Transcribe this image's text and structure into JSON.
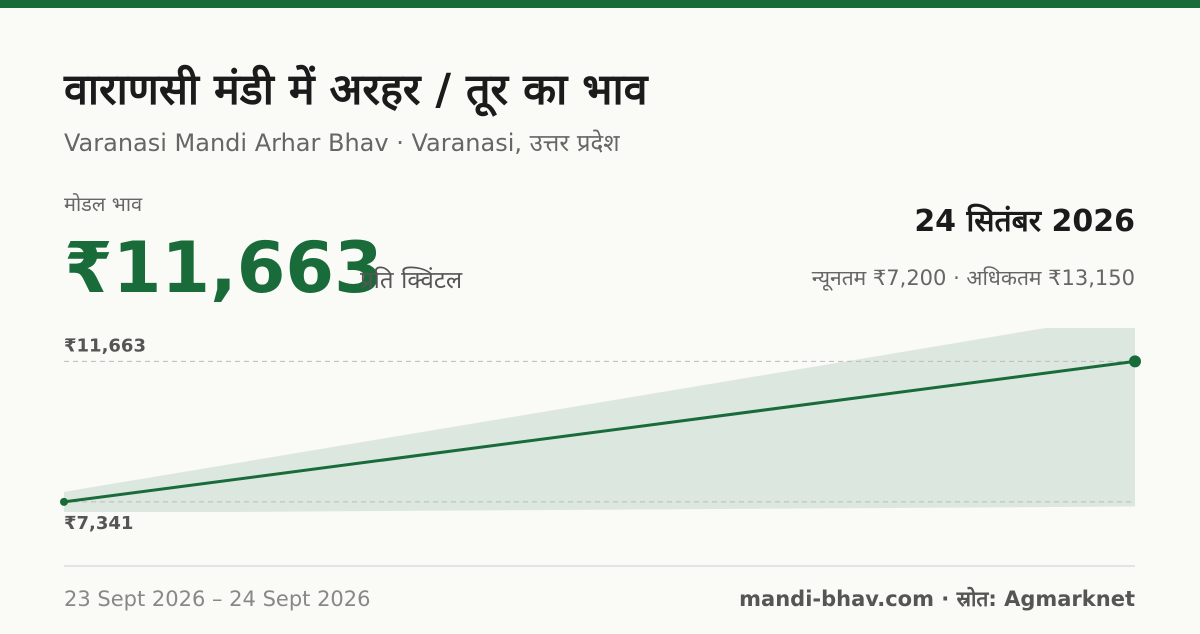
{
  "header": {
    "title": "वाराणसी मंडी में अरहर / तूर का भाव",
    "subtitle": "Varanasi Mandi Arhar Bhav · Varanasi, उत्तर प्रदेश"
  },
  "price": {
    "label": "मोडल भाव",
    "value": "₹11,663",
    "unit": "प्रति क्विंटल"
  },
  "date": "24 सितंबर 2026",
  "range": "न्यूनतम ₹7,200 · अधिकतम ₹13,150",
  "chart_data": {
    "type": "line",
    "categories": [
      null,
      null
    ],
    "values": [
      7341,
      11663
    ],
    "color": "#1a6b3a",
    "band": {
      "low": [
        7000,
        7200
      ],
      "high": [
        7650,
        13150
      ],
      "color": "#dce8df"
    },
    "reference_lines": [
      {
        "value": 11663,
        "label": "₹11,663"
      },
      {
        "value": 7341,
        "label": "₹7,341"
      }
    ],
    "ylim": [
      7030,
      12690
    ]
  },
  "footer": {
    "range": "23 Sept 2026 – 24 Sept 2026",
    "source": "mandi-bhav.com · स्रोत: Agmarknet"
  }
}
